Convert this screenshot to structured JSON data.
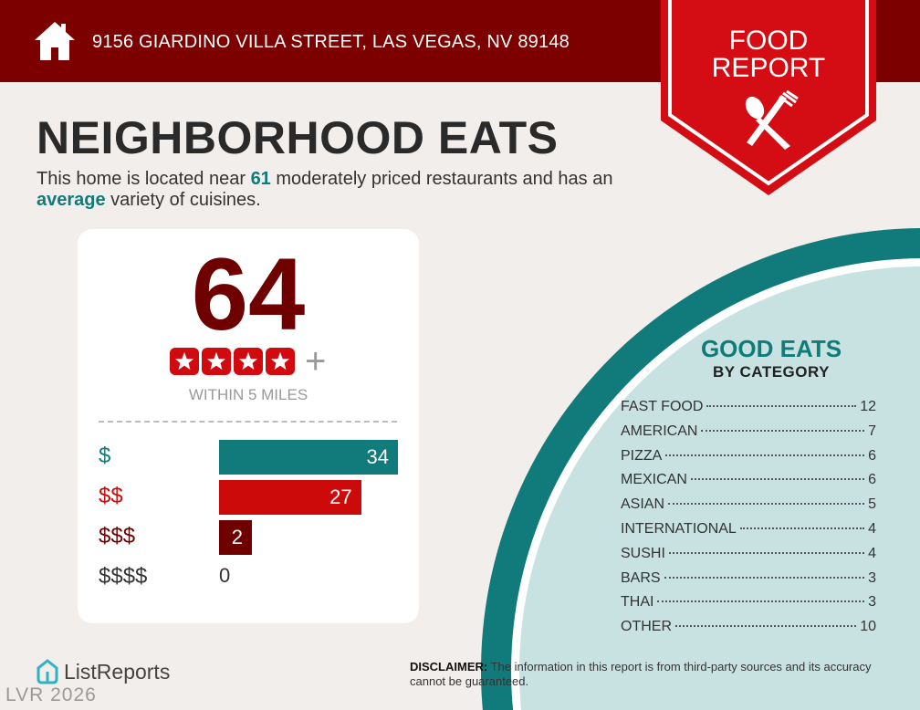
{
  "header": {
    "address": "9156 GIARDINO VILLA STREET, LAS VEGAS, NV 89148",
    "icon": "house-icon"
  },
  "badge": {
    "line1": "FOOD",
    "line2": "REPORT",
    "icon": "spoon-fork-icon"
  },
  "title": "NEIGHBORHOOD EATS",
  "intro": {
    "p1": "This home is located near ",
    "count": "61",
    "p2": " moderately priced restaurants and has an ",
    "variety": "average",
    "p3": " variety of cuisines."
  },
  "score_card": {
    "score": "64",
    "stars": 4,
    "plus": "+",
    "within": "WITHIN 5 MILES",
    "tiers": [
      {
        "label": "$",
        "value": 34,
        "color": "#117a7a"
      },
      {
        "label": "$$",
        "value": 27,
        "color": "#cc0a0a"
      },
      {
        "label": "$$$",
        "value": 2,
        "color": "#6e0000"
      },
      {
        "label": "$$$$",
        "value": 0,
        "color": "#333333"
      }
    ]
  },
  "good_eats": {
    "title": "GOOD EATS",
    "subtitle": "BY CATEGORY",
    "categories": [
      {
        "name": "FAST FOOD",
        "count": "12"
      },
      {
        "name": "AMERICAN",
        "count": "7"
      },
      {
        "name": "PIZZA",
        "count": "6"
      },
      {
        "name": "MEXICAN",
        "count": "6"
      },
      {
        "name": "ASIAN",
        "count": "5"
      },
      {
        "name": "INTERNATIONAL",
        "count": "4"
      },
      {
        "name": "SUSHI",
        "count": "4"
      },
      {
        "name": "BARS",
        "count": "3"
      },
      {
        "name": "THAI",
        "count": "3"
      },
      {
        "name": "OTHER",
        "count": "10"
      }
    ]
  },
  "footer": {
    "logo": "ListReports",
    "disclaimer_label": "DISCLAIMER:",
    "disclaimer": " The information in this report is from third-party sources and its accuracy cannot be guaranteed.",
    "watermark": "LVR 2026"
  },
  "colors": {
    "header": "#7c0000",
    "badge": "#d40c14",
    "teal": "#117a7a",
    "light_teal": "#c7e2e0",
    "background": "#f2eeeb"
  }
}
